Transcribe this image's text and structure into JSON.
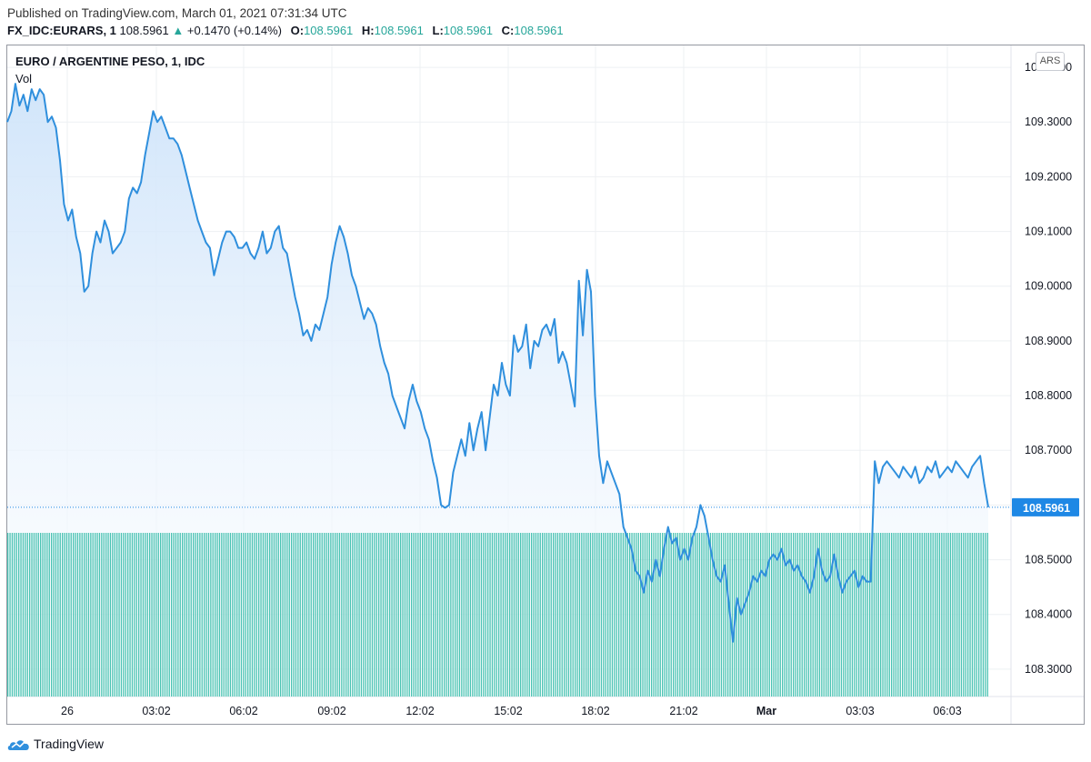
{
  "header": {
    "published": "Published on TradingView.com, March 01, 2021 07:31:34 UTC",
    "symbol": "FX_IDC:EURARS, 1",
    "last": "108.5961",
    "change_arrow": "▲",
    "change": "+0.1470 (+0.14%)",
    "o_label": "O:",
    "o_value": "108.5961",
    "h_label": "H:",
    "h_value": "108.5961",
    "l_label": "L:",
    "l_value": "108.5961",
    "c_label": "C:",
    "c_value": "108.5961"
  },
  "chart_title": "EURO / ARGENTINE PESO, 1, IDC",
  "vol_label": "Vol",
  "currency_button": "ARS",
  "footer": {
    "brand": "TradingView"
  },
  "colors": {
    "line": "#2f8fdd",
    "area_top": "#cfe4fa",
    "area_bottom": "#ffffff",
    "volume": "#2bb8a6",
    "grid": "#eef0f3",
    "up": "#26a69a",
    "price_tag": "#1e88e5"
  },
  "chart_data": {
    "type": "area",
    "title": "EURO / ARGENTINE PESO, 1, IDC",
    "ylim": [
      108.25,
      109.44
    ],
    "y_ticks": [
      "109.4000",
      "109.3000",
      "109.2000",
      "109.1000",
      "109.0000",
      "108.9000",
      "108.8000",
      "108.7000",
      "108.6000",
      "108.5000",
      "108.4000",
      "108.3000"
    ],
    "x_ticks": [
      "26",
      "03:02",
      "06:02",
      "09:02",
      "12:02",
      "15:02",
      "18:02",
      "21:02",
      "Mar",
      "03:03",
      "06:03"
    ],
    "last_price_label": "108.5961",
    "series": [
      {
        "values": [
          109.3,
          109.32,
          109.37,
          109.33,
          109.35,
          109.32,
          109.36,
          109.34,
          109.36,
          109.35,
          109.3,
          109.31,
          109.29,
          109.23,
          109.15,
          109.12,
          109.14,
          109.09,
          109.06,
          108.99,
          109.0,
          109.06,
          109.1,
          109.08,
          109.12,
          109.1,
          109.06,
          109.07,
          109.08,
          109.1,
          109.16,
          109.18,
          109.17,
          109.19,
          109.24,
          109.28,
          109.32,
          109.3,
          109.31,
          109.29,
          109.27,
          109.27,
          109.26,
          109.24,
          109.21,
          109.18,
          109.15,
          109.12,
          109.1,
          109.08,
          109.07,
          109.02,
          109.05,
          109.08,
          109.1,
          109.1,
          109.09,
          109.07,
          109.07,
          109.08,
          109.06,
          109.05,
          109.07,
          109.1,
          109.06,
          109.07,
          109.1,
          109.11,
          109.07,
          109.06,
          109.02,
          108.98,
          108.95,
          108.91,
          108.92,
          108.9,
          108.93,
          108.92,
          108.95,
          108.98,
          109.04,
          109.08,
          109.11,
          109.09,
          109.06,
          109.02,
          109.0,
          108.97,
          108.94,
          108.96,
          108.95,
          108.93,
          108.89,
          108.86,
          108.84,
          108.8,
          108.78,
          108.76,
          108.74,
          108.79,
          108.82,
          108.79,
          108.77,
          108.74,
          108.72,
          108.68,
          108.65,
          108.6,
          108.595,
          108.6,
          108.66,
          108.69,
          108.72,
          108.69,
          108.75,
          108.7,
          108.74,
          108.77,
          108.7,
          108.76,
          108.82,
          108.8,
          108.86,
          108.82,
          108.8,
          108.91,
          108.88,
          108.89,
          108.93,
          108.85,
          108.9,
          108.89,
          108.92,
          108.93,
          108.91,
          108.94,
          108.86,
          108.88,
          108.86,
          108.82,
          108.78,
          109.01,
          108.91,
          109.03,
          108.99,
          108.8,
          108.69,
          108.64,
          108.68,
          108.66,
          108.64,
          108.62,
          108.56,
          108.54,
          108.52,
          108.48,
          108.47,
          108.44,
          108.48,
          108.46,
          108.5,
          108.47,
          108.52,
          108.56,
          108.53,
          108.54,
          108.5,
          108.52,
          108.5,
          108.54,
          108.56,
          108.6,
          108.58,
          108.54,
          108.5,
          108.47,
          108.46,
          108.49,
          108.42,
          108.35,
          108.43,
          108.4,
          108.42,
          108.44,
          108.47,
          108.46,
          108.48,
          108.47,
          108.5,
          108.51,
          108.5,
          108.52,
          108.49,
          108.5,
          108.48,
          108.49,
          108.47,
          108.46,
          108.44,
          108.47,
          108.52,
          108.48,
          108.46,
          108.47,
          108.51,
          108.47,
          108.44,
          108.46,
          108.47,
          108.48,
          108.45,
          108.47,
          108.46,
          108.46,
          108.68,
          108.64,
          108.67,
          108.68,
          108.67,
          108.66,
          108.65,
          108.67,
          108.66,
          108.65,
          108.67,
          108.64,
          108.65,
          108.67,
          108.66,
          108.68,
          108.65,
          108.66,
          108.67,
          108.66,
          108.68,
          108.67,
          108.66,
          108.65,
          108.67,
          108.68,
          108.69,
          108.64,
          108.596
        ]
      }
    ],
    "volume": {
      "value": 1
    }
  }
}
